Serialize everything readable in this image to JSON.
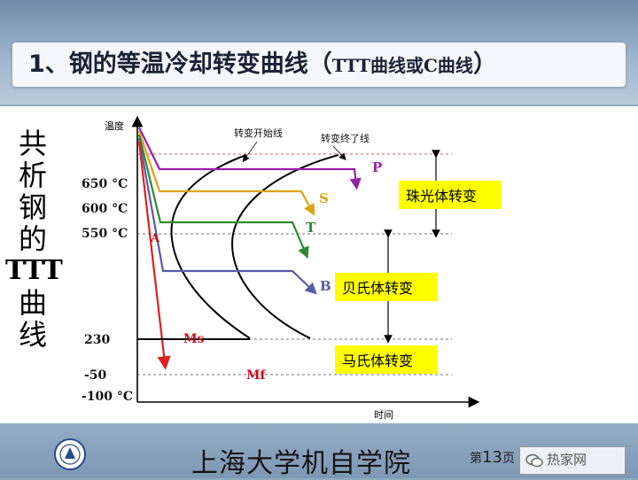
{
  "title": {
    "main": "1、钢的等温冷却转变曲线（",
    "ttt": "TTT曲线或C曲线",
    "close": "）"
  },
  "side_title": [
    "共",
    "析",
    "钢",
    "的",
    "TTT",
    "曲",
    "线"
  ],
  "diagram": {
    "y_axis_label": "温度",
    "x_axis_label": "时间",
    "callout_start": "转变开始线",
    "callout_end": "转变终了线",
    "temperatures": {
      "t650": "650 °C",
      "t600": "600 °C",
      "t550": "550 °C",
      "t230": "230",
      "tm50": "-50",
      "tm100": "-100 °C"
    },
    "point_a": "A",
    "curve_labels": {
      "p": "P",
      "s": "S",
      "t": "T",
      "b": "B"
    },
    "ms_label": "Ms",
    "mf_label": "Mf",
    "zones": {
      "pearlite": "珠光体转变",
      "bainite": "贝氏体转变",
      "martensite": "马氏体转变"
    },
    "colors": {
      "p": "#9b1fa8",
      "s": "#e0a216",
      "t": "#2f8a2f",
      "b": "#5a5aa6",
      "quench": "#e02020",
      "label_red": "#c01020",
      "zone_fill": "#fefe00"
    }
  },
  "footer": {
    "school": "上海大学机自学院",
    "page_prefix": "第",
    "page_number": "13",
    "page_suffix": "页",
    "watermark": "热家网"
  }
}
